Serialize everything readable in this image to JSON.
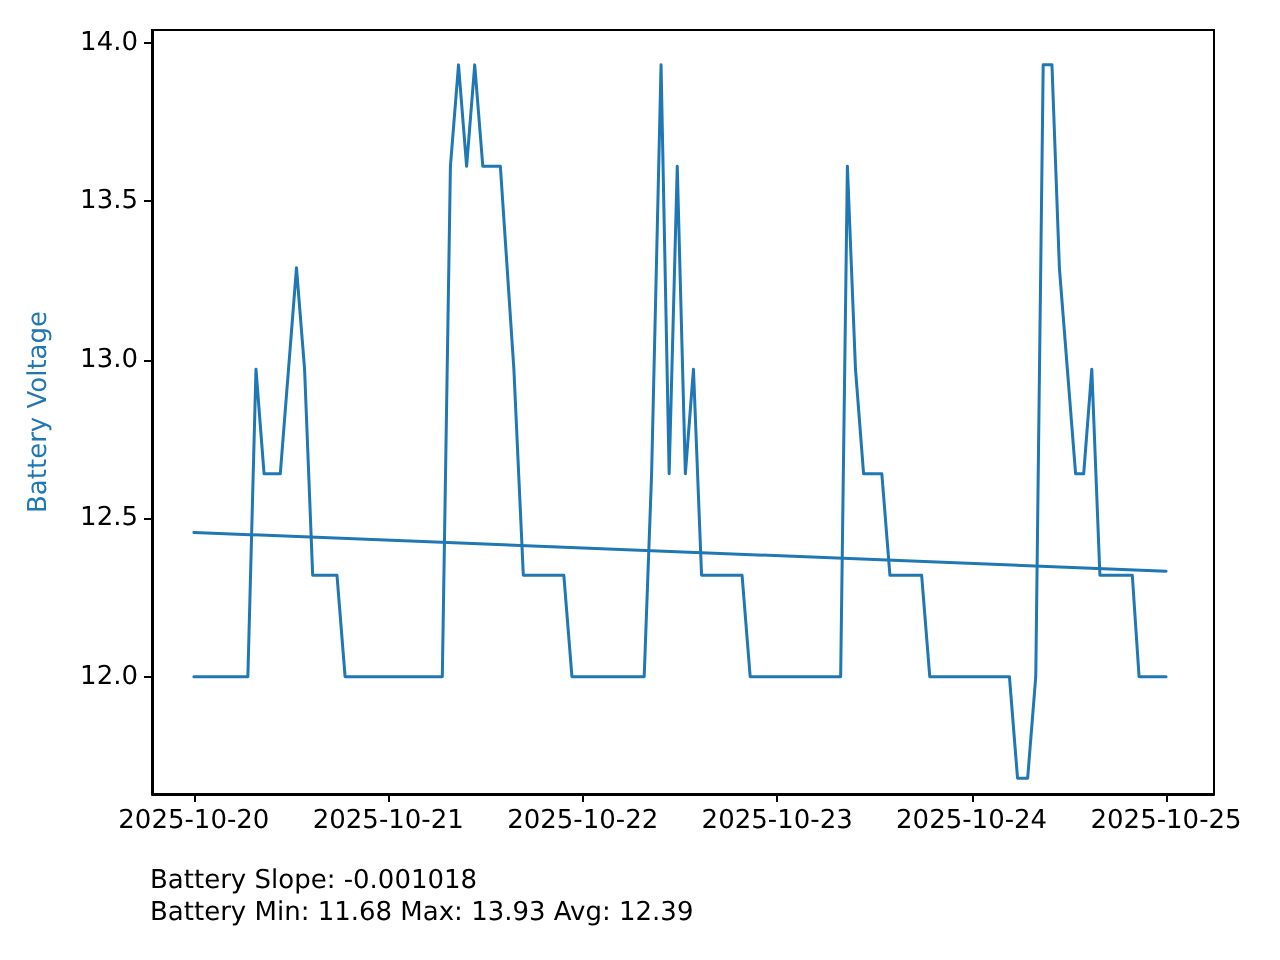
{
  "chart_data": {
    "type": "line",
    "ylabel": "Battery Voltage",
    "annotations": [
      "Battery Slope: -0.001018",
      "Battery Min: 11.68 Max: 13.93 Avg: 12.39"
    ],
    "x": [
      "2025-10-20T00:00",
      "2025-10-20T06:40",
      "2025-10-20T07:40",
      "2025-10-20T08:40",
      "2025-10-20T10:40",
      "2025-10-20T12:40",
      "2025-10-20T13:40",
      "2025-10-20T14:40",
      "2025-10-20T17:40",
      "2025-10-20T18:40",
      "2025-10-21T06:40",
      "2025-10-21T07:40",
      "2025-10-21T08:40",
      "2025-10-21T09:40",
      "2025-10-21T10:40",
      "2025-10-21T11:40",
      "2025-10-21T13:50",
      "2025-10-21T15:30",
      "2025-10-21T16:40",
      "2025-10-21T21:40",
      "2025-10-21T22:40",
      "2025-10-22T07:35",
      "2025-10-22T08:30",
      "2025-10-22T09:40",
      "2025-10-22T10:40",
      "2025-10-22T11:40",
      "2025-10-22T12:40",
      "2025-10-22T13:40",
      "2025-10-22T14:40",
      "2025-10-22T19:40",
      "2025-10-22T20:40",
      "2025-10-23T07:50",
      "2025-10-23T08:40",
      "2025-10-23T09:40",
      "2025-10-23T10:40",
      "2025-10-23T12:55",
      "2025-10-23T13:55",
      "2025-10-23T17:50",
      "2025-10-23T18:50",
      "2025-10-24T04:40",
      "2025-10-24T05:40",
      "2025-10-24T06:55",
      "2025-10-24T07:55",
      "2025-10-24T08:50",
      "2025-10-24T09:55",
      "2025-10-24T10:50",
      "2025-10-24T12:50",
      "2025-10-24T13:50",
      "2025-10-24T14:50",
      "2025-10-24T15:50",
      "2025-10-24T19:50",
      "2025-10-24T20:40",
      "2025-10-25T00:00"
    ],
    "series": [
      {
        "color": "#1f77b4",
        "values": [
          12.0,
          12.0,
          12.97,
          12.64,
          12.64,
          13.29,
          12.97,
          12.32,
          12.32,
          12.0,
          12.0,
          13.61,
          13.93,
          13.61,
          13.93,
          13.61,
          13.61,
          12.97,
          12.32,
          12.32,
          12.0,
          12.0,
          12.64,
          13.93,
          12.64,
          13.61,
          12.64,
          12.97,
          12.32,
          12.32,
          12.0,
          12.0,
          13.61,
          12.97,
          12.64,
          12.64,
          12.32,
          12.32,
          12.0,
          12.0,
          11.68,
          11.68,
          12.0,
          13.93,
          13.93,
          13.29,
          12.64,
          12.64,
          12.97,
          12.32,
          12.32,
          12.0,
          12.0
        ]
      },
      {
        "type": "line",
        "color": "#1f77b4",
        "x": [
          "2025-10-20T00:00",
          "2025-10-25T00:00"
        ],
        "values": [
          12.455,
          12.333
        ]
      }
    ],
    "xlim": [
      "2025-10-19T18:50",
      "2025-10-25T05:55"
    ],
    "xticks": [
      "2025-10-20",
      "2025-10-21",
      "2025-10-22",
      "2025-10-23",
      "2025-10-24",
      "2025-10-25"
    ],
    "ylim": [
      11.63,
      14.04
    ],
    "yticks": [
      {
        "value": 12,
        "label": "12.0"
      },
      {
        "value": 12.5,
        "label": "12.5"
      },
      {
        "value": 13,
        "label": "13.0"
      },
      {
        "value": 13.5,
        "label": "13.5"
      },
      {
        "value": 14,
        "label": "14.0"
      }
    ],
    "grid": false,
    "marker": "none",
    "line_style": "solid"
  }
}
